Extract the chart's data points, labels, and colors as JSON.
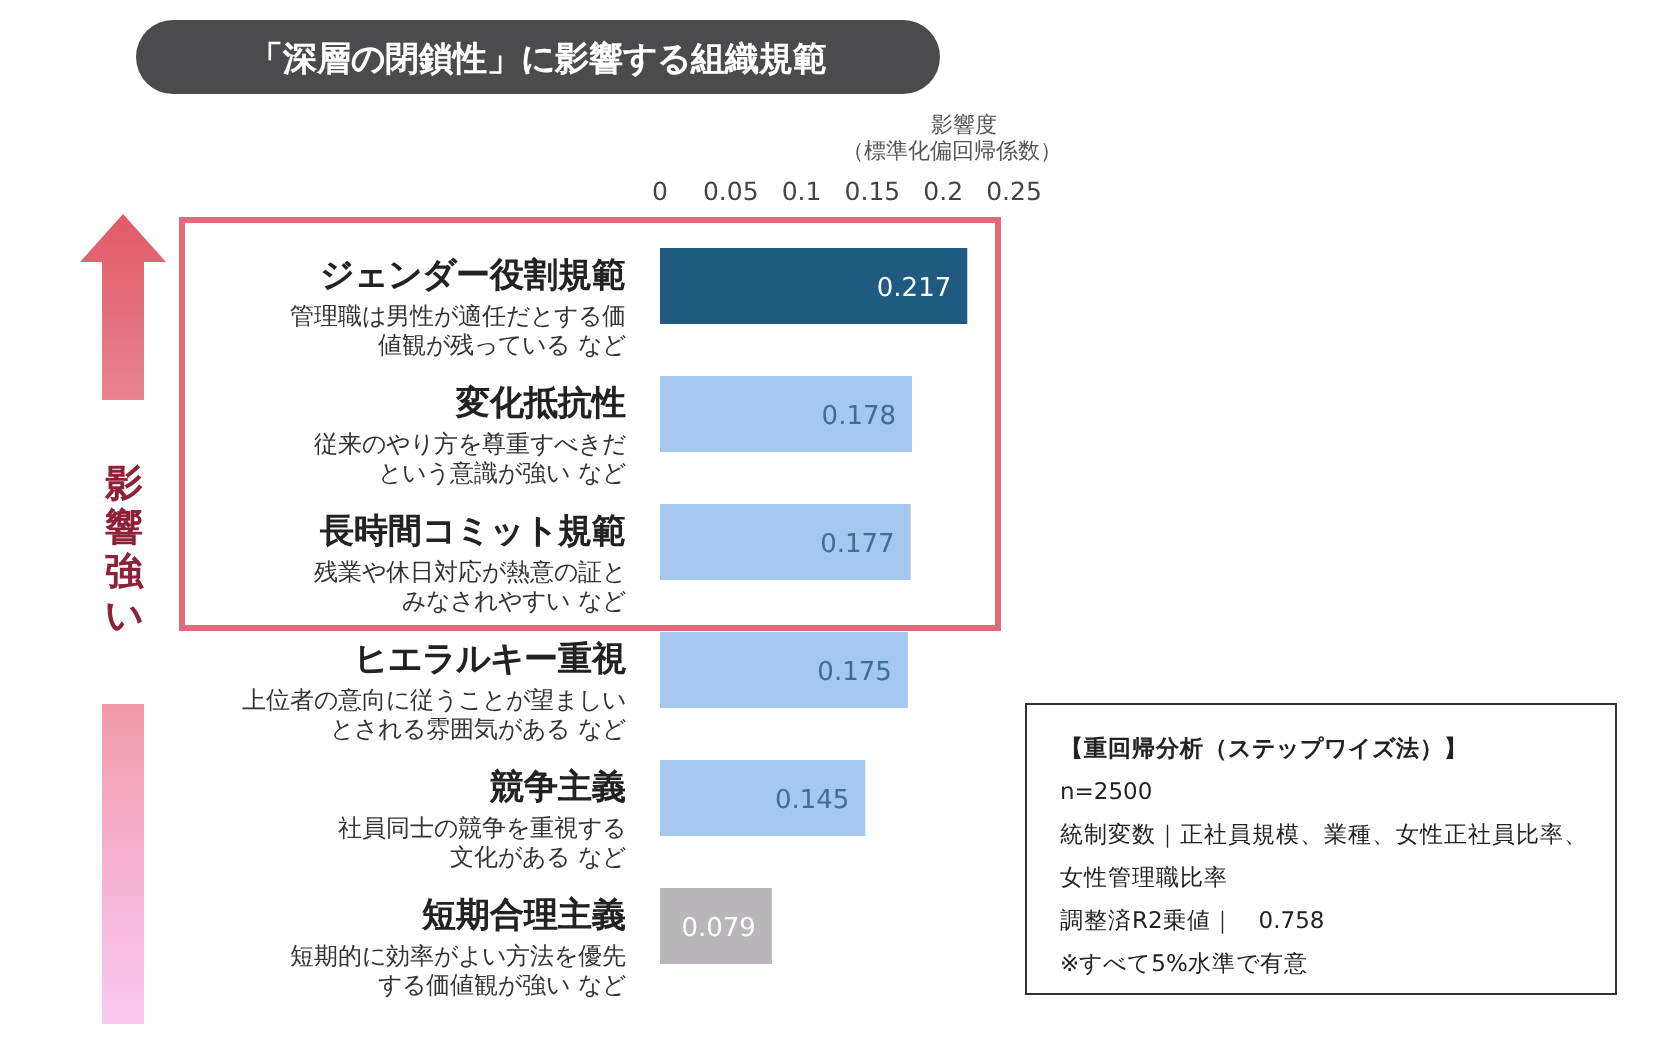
{
  "chart_data": {
    "type": "bar",
    "orientation": "horizontal",
    "title": "「深層の閉鎖性」に影響する組織規範",
    "xlabel": "影響度（標準化偏回帰係数）",
    "categories": [
      "ジェンダー役割規範",
      "変化抵抗性",
      "長時間コミット規範",
      "ヒエラルキー重視",
      "競争主義",
      "短期合理主義"
    ],
    "values": [
      0.217,
      0.178,
      0.177,
      0.175,
      0.145,
      0.079
    ],
    "colors": [
      "#1f5a80",
      "#a4c8f0",
      "#a4c8f0",
      "#a4c8f0",
      "#a4c8f0",
      "#bab5bb"
    ],
    "data_labels": true,
    "xlim": [
      0,
      0.25
    ],
    "xticks": [
      0,
      0.05,
      0.1,
      0.15,
      0.2,
      0.25
    ],
    "grid": false,
    "annotations": [
      "管理職は男性が適任だとする価値観が残っている など",
      "従来のやり方を尊重すべきだという意識が強い など",
      "残業や休日対応が熱意の証とみなされやすい など",
      "上位者の意向に従うことが望ましいとされる雰囲気がある など",
      "社員同士の競争を重視する文化がある など",
      "短期的に効率がよい方法を優先する価値観が強い など",
      "影響強い",
      "【重回帰分析（ステップワイズ法）】",
      "n=2500",
      "統制変数｜正社員規模、業種、女性正社員比率、女性管理職比率",
      "調整済R2乗値｜　0.758",
      "※すべて5%水準で有意"
    ]
  }
}
